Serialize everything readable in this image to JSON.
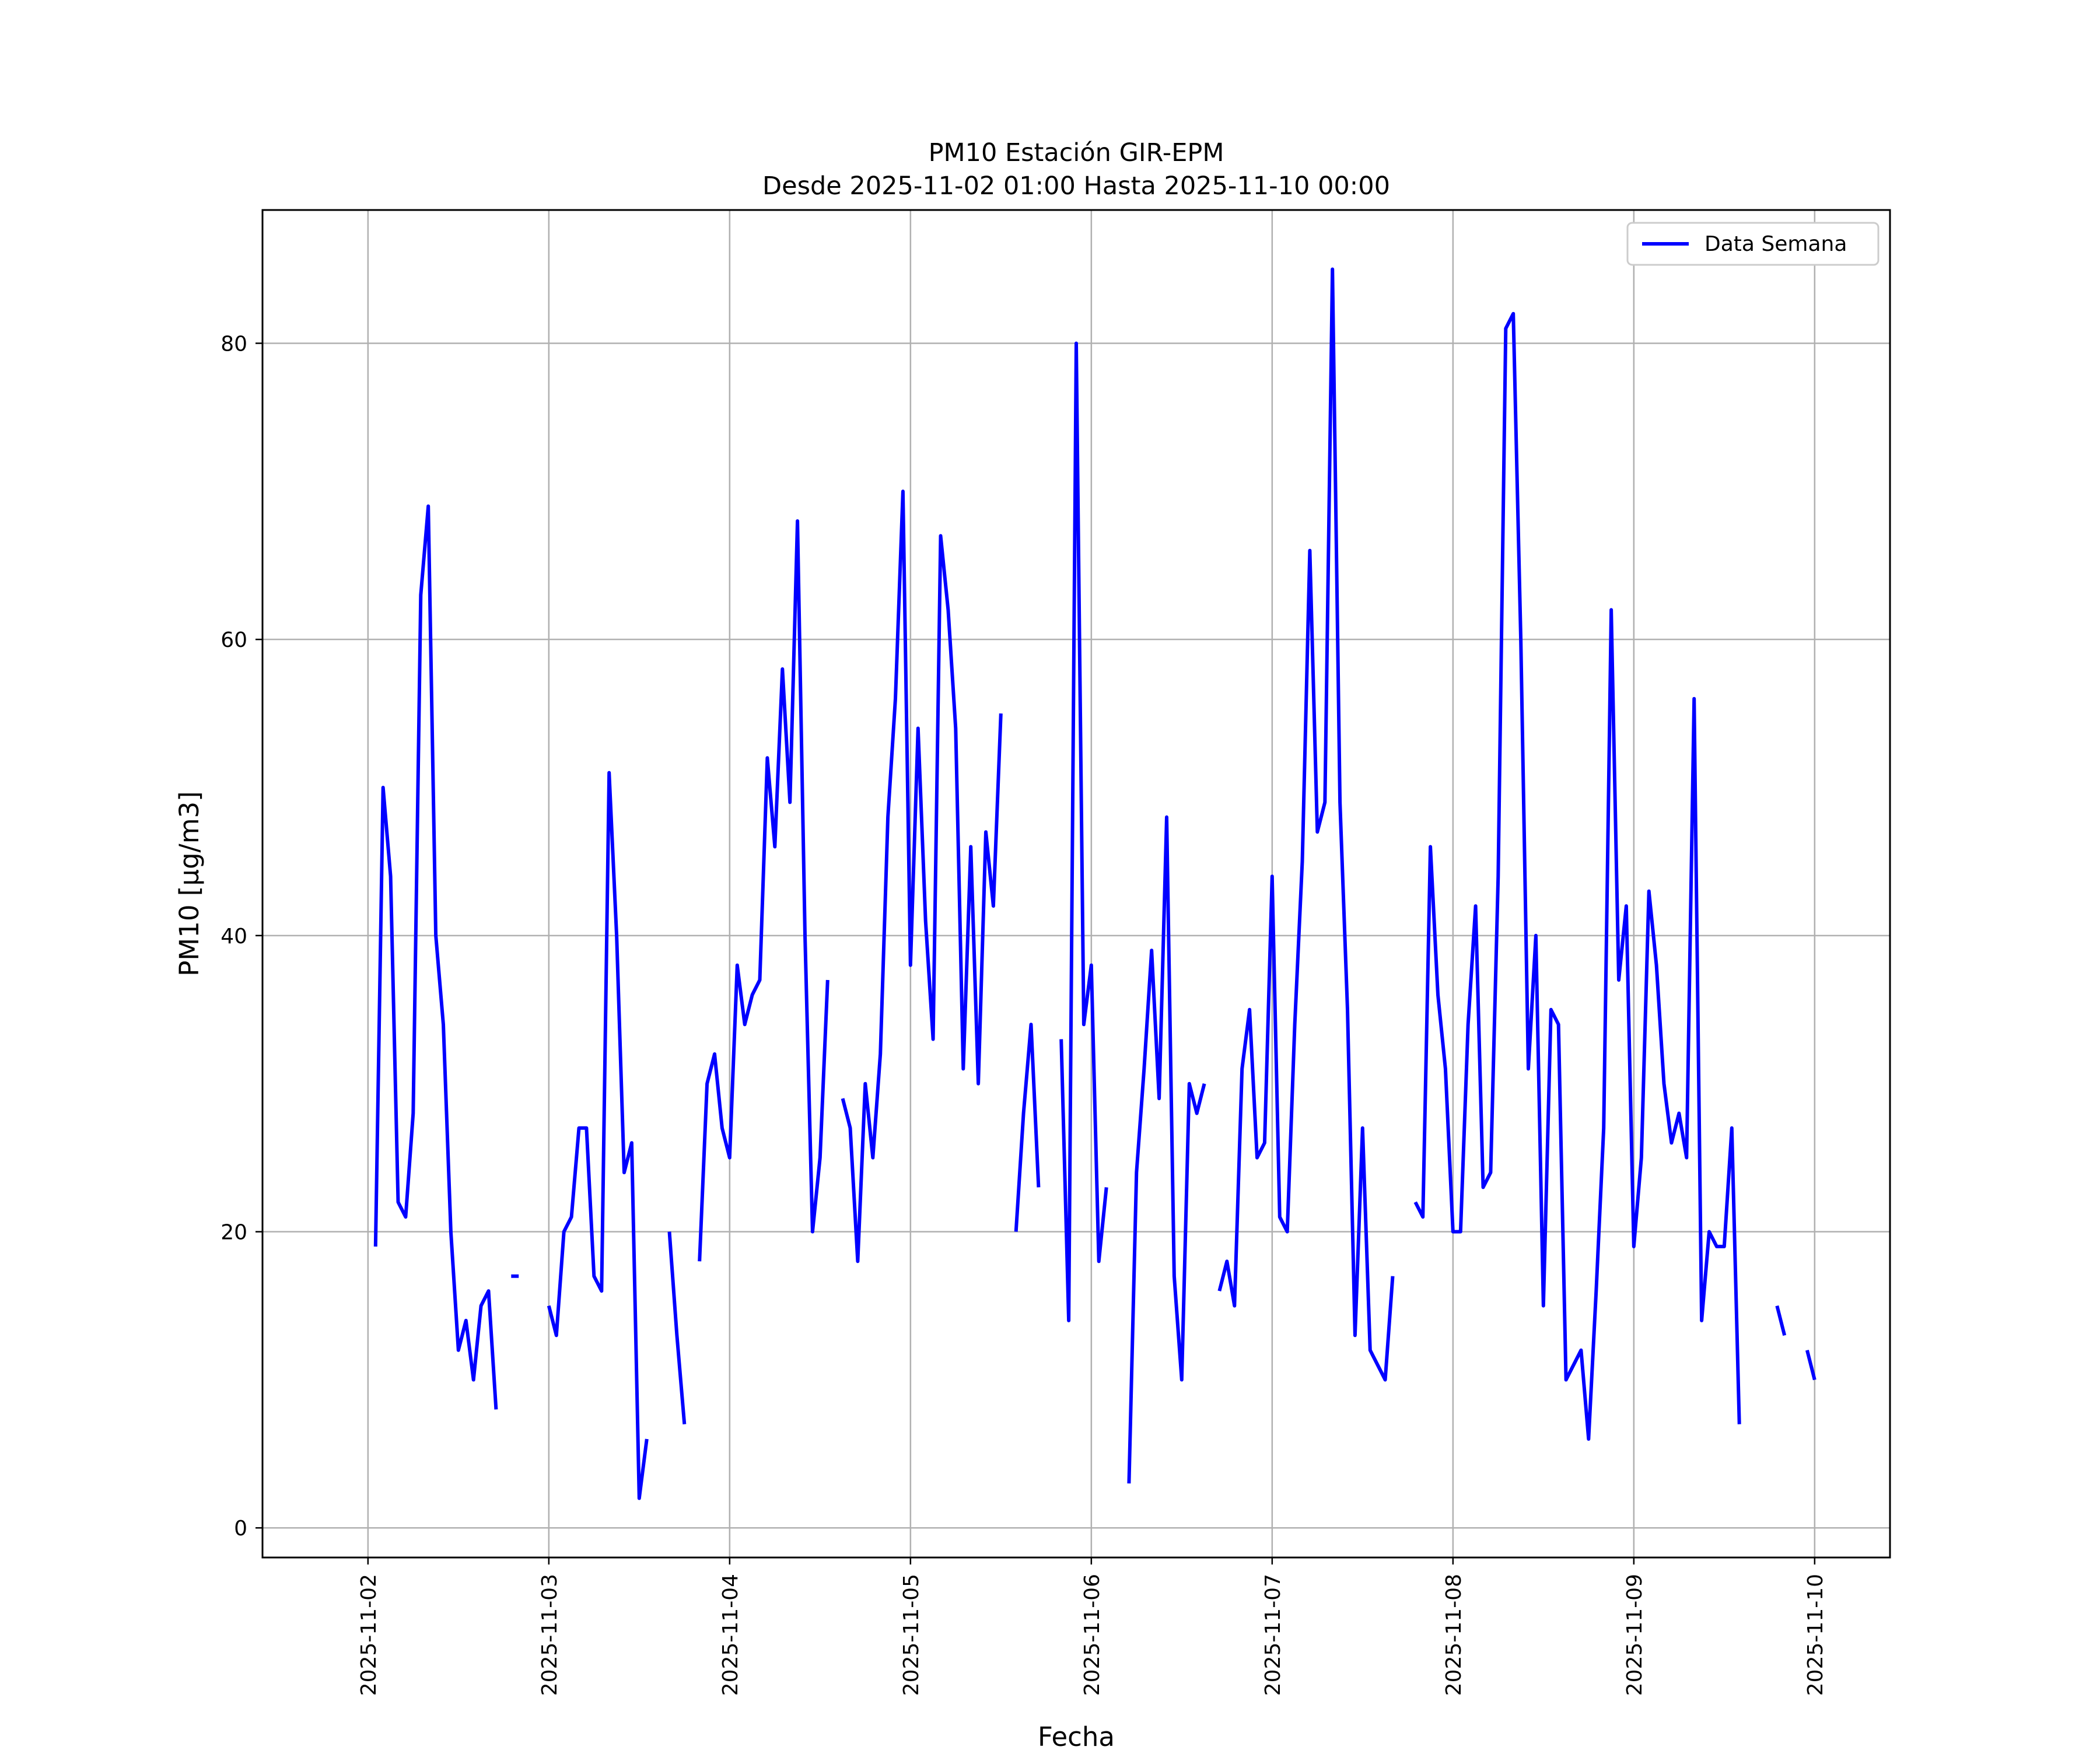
{
  "chart_data": {
    "type": "line",
    "title": "PM10 Estación GIR-EPM",
    "subtitle": "Desde 2025-11-02 01:00 Hasta 2025-11-10 00:00",
    "xlabel": "Fecha",
    "ylabel": "PM10 [μg/m3]",
    "x_ticks": [
      "2025-11-02",
      "2025-11-03",
      "2025-11-04",
      "2025-11-05",
      "2025-11-06",
      "2025-11-07",
      "2025-11-08",
      "2025-11-09",
      "2025-11-10"
    ],
    "y_ticks": [
      0,
      20,
      40,
      60,
      80
    ],
    "ylim": [
      -2,
      89
    ],
    "xlim": [
      "2025-11-01 10:00",
      "2025-11-10 10:00"
    ],
    "grid": true,
    "legend": {
      "position": "top-right"
    },
    "series": [
      {
        "name": "Data Semana",
        "color": "#0000ff",
        "points": [
          [
            "2025-11-02 01:00",
            19
          ],
          [
            "2025-11-02 02:00",
            50
          ],
          [
            "2025-11-02 03:00",
            44
          ],
          [
            "2025-11-02 04:00",
            22
          ],
          [
            "2025-11-02 05:00",
            21
          ],
          [
            "2025-11-02 06:00",
            28
          ],
          [
            "2025-11-02 07:00",
            63
          ],
          [
            "2025-11-02 08:00",
            69
          ],
          [
            "2025-11-02 09:00",
            40
          ],
          [
            "2025-11-02 10:00",
            34
          ],
          [
            "2025-11-02 11:00",
            20
          ],
          [
            "2025-11-02 12:00",
            12
          ],
          [
            "2025-11-02 13:00",
            14
          ],
          [
            "2025-11-02 14:00",
            10
          ],
          [
            "2025-11-02 15:00",
            15
          ],
          [
            "2025-11-02 16:00",
            16
          ],
          [
            "2025-11-02 17:00",
            8
          ],
          [
            "2025-11-02 18:00",
            null
          ],
          [
            "2025-11-02 19:00",
            17
          ],
          [
            "2025-11-02 20:00",
            17
          ],
          [
            "2025-11-02 21:00",
            null
          ],
          [
            "2025-11-02 22:00",
            null
          ],
          [
            "2025-11-02 23:00",
            null
          ],
          [
            "2025-11-03 00:00",
            15
          ],
          [
            "2025-11-03 01:00",
            13
          ],
          [
            "2025-11-03 02:00",
            20
          ],
          [
            "2025-11-03 03:00",
            21
          ],
          [
            "2025-11-03 04:00",
            27
          ],
          [
            "2025-11-03 05:00",
            27
          ],
          [
            "2025-11-03 06:00",
            17
          ],
          [
            "2025-11-03 07:00",
            16
          ],
          [
            "2025-11-03 08:00",
            51
          ],
          [
            "2025-11-03 09:00",
            40
          ],
          [
            "2025-11-03 10:00",
            24
          ],
          [
            "2025-11-03 11:00",
            26
          ],
          [
            "2025-11-03 12:00",
            2
          ],
          [
            "2025-11-03 13:00",
            6
          ],
          [
            "2025-11-03 14:00",
            null
          ],
          [
            "2025-11-03 15:00",
            null
          ],
          [
            "2025-11-03 16:00",
            20
          ],
          [
            "2025-11-03 17:00",
            13
          ],
          [
            "2025-11-03 18:00",
            7
          ],
          [
            "2025-11-03 19:00",
            null
          ],
          [
            "2025-11-03 20:00",
            18
          ],
          [
            "2025-11-03 21:00",
            30
          ],
          [
            "2025-11-03 22:00",
            32
          ],
          [
            "2025-11-03 23:00",
            27
          ],
          [
            "2025-11-04 00:00",
            25
          ],
          [
            "2025-11-04 01:00",
            38
          ],
          [
            "2025-11-04 02:00",
            34
          ],
          [
            "2025-11-04 03:00",
            36
          ],
          [
            "2025-11-04 04:00",
            37
          ],
          [
            "2025-11-04 05:00",
            52
          ],
          [
            "2025-11-04 06:00",
            46
          ],
          [
            "2025-11-04 07:00",
            58
          ],
          [
            "2025-11-04 08:00",
            49
          ],
          [
            "2025-11-04 09:00",
            68
          ],
          [
            "2025-11-04 10:00",
            40
          ],
          [
            "2025-11-04 11:00",
            20
          ],
          [
            "2025-11-04 12:00",
            25
          ],
          [
            "2025-11-04 13:00",
            37
          ],
          [
            "2025-11-04 14:00",
            null
          ],
          [
            "2025-11-04 15:00",
            29
          ],
          [
            "2025-11-04 16:00",
            27
          ],
          [
            "2025-11-04 17:00",
            18
          ],
          [
            "2025-11-04 18:00",
            30
          ],
          [
            "2025-11-04 19:00",
            25
          ],
          [
            "2025-11-04 20:00",
            32
          ],
          [
            "2025-11-04 21:00",
            48
          ],
          [
            "2025-11-04 22:00",
            56
          ],
          [
            "2025-11-04 23:00",
            70
          ],
          [
            "2025-11-05 00:00",
            38
          ],
          [
            "2025-11-05 01:00",
            54
          ],
          [
            "2025-11-05 02:00",
            41
          ],
          [
            "2025-11-05 03:00",
            33
          ],
          [
            "2025-11-05 04:00",
            67
          ],
          [
            "2025-11-05 05:00",
            62
          ],
          [
            "2025-11-05 06:00",
            54
          ],
          [
            "2025-11-05 07:00",
            31
          ],
          [
            "2025-11-05 08:00",
            46
          ],
          [
            "2025-11-05 09:00",
            30
          ],
          [
            "2025-11-05 10:00",
            47
          ],
          [
            "2025-11-05 11:00",
            42
          ],
          [
            "2025-11-05 12:00",
            55
          ],
          [
            "2025-11-05 13:00",
            null
          ],
          [
            "2025-11-05 14:00",
            20
          ],
          [
            "2025-11-05 15:00",
            28
          ],
          [
            "2025-11-05 16:00",
            34
          ],
          [
            "2025-11-05 17:00",
            23
          ],
          [
            "2025-11-05 18:00",
            null
          ],
          [
            "2025-11-05 20:00",
            33
          ],
          [
            "2025-11-05 21:00",
            14
          ],
          [
            "2025-11-05 22:00",
            80
          ],
          [
            "2025-11-05 23:00",
            34
          ],
          [
            "2025-11-06 00:00",
            38
          ],
          [
            "2025-11-06 01:00",
            18
          ],
          [
            "2025-11-06 02:00",
            23
          ],
          [
            "2025-11-06 03:00",
            null
          ],
          [
            "2025-11-06 05:00",
            3
          ],
          [
            "2025-11-06 06:00",
            24
          ],
          [
            "2025-11-06 07:00",
            31
          ],
          [
            "2025-11-06 08:00",
            39
          ],
          [
            "2025-11-06 09:00",
            29
          ],
          [
            "2025-11-06 10:00",
            48
          ],
          [
            "2025-11-06 11:00",
            17
          ],
          [
            "2025-11-06 12:00",
            10
          ],
          [
            "2025-11-06 13:00",
            30
          ],
          [
            "2025-11-06 14:00",
            28
          ],
          [
            "2025-11-06 15:00",
            30
          ],
          [
            "2025-11-06 16:00",
            null
          ],
          [
            "2025-11-06 17:00",
            16
          ],
          [
            "2025-11-06 18:00",
            18
          ],
          [
            "2025-11-06 19:00",
            15
          ],
          [
            "2025-11-06 20:00",
            31
          ],
          [
            "2025-11-06 21:00",
            35
          ],
          [
            "2025-11-06 22:00",
            25
          ],
          [
            "2025-11-06 23:00",
            26
          ],
          [
            "2025-11-07 00:00",
            44
          ],
          [
            "2025-11-07 01:00",
            21
          ],
          [
            "2025-11-07 02:00",
            20
          ],
          [
            "2025-11-07 03:00",
            34
          ],
          [
            "2025-11-07 04:00",
            45
          ],
          [
            "2025-11-07 05:00",
            66
          ],
          [
            "2025-11-07 06:00",
            47
          ],
          [
            "2025-11-07 07:00",
            49
          ],
          [
            "2025-11-07 08:00",
            85
          ],
          [
            "2025-11-07 09:00",
            49
          ],
          [
            "2025-11-07 10:00",
            35
          ],
          [
            "2025-11-07 11:00",
            13
          ],
          [
            "2025-11-07 12:00",
            27
          ],
          [
            "2025-11-07 13:00",
            12
          ],
          [
            "2025-11-07 14:00",
            11
          ],
          [
            "2025-11-07 15:00",
            10
          ],
          [
            "2025-11-07 16:00",
            17
          ],
          [
            "2025-11-07 17:00",
            null
          ],
          [
            "2025-11-07 19:00",
            22
          ],
          [
            "2025-11-07 20:00",
            21
          ],
          [
            "2025-11-07 21:00",
            46
          ],
          [
            "2025-11-07 22:00",
            36
          ],
          [
            "2025-11-07 23:00",
            31
          ],
          [
            "2025-11-08 00:00",
            20
          ],
          [
            "2025-11-08 01:00",
            20
          ],
          [
            "2025-11-08 02:00",
            34
          ],
          [
            "2025-11-08 03:00",
            42
          ],
          [
            "2025-11-08 04:00",
            23
          ],
          [
            "2025-11-08 05:00",
            24
          ],
          [
            "2025-11-08 06:00",
            44
          ],
          [
            "2025-11-08 07:00",
            81
          ],
          [
            "2025-11-08 08:00",
            82
          ],
          [
            "2025-11-08 09:00",
            60
          ],
          [
            "2025-11-08 10:00",
            31
          ],
          [
            "2025-11-08 11:00",
            40
          ],
          [
            "2025-11-08 12:00",
            15
          ],
          [
            "2025-11-08 13:00",
            35
          ],
          [
            "2025-11-08 14:00",
            34
          ],
          [
            "2025-11-08 15:00",
            10
          ],
          [
            "2025-11-08 16:00",
            11
          ],
          [
            "2025-11-08 17:00",
            12
          ],
          [
            "2025-11-08 18:00",
            6
          ],
          [
            "2025-11-08 19:00",
            16
          ],
          [
            "2025-11-08 20:00",
            27
          ],
          [
            "2025-11-08 21:00",
            62
          ],
          [
            "2025-11-08 22:00",
            37
          ],
          [
            "2025-11-08 23:00",
            42
          ],
          [
            "2025-11-09 00:00",
            19
          ],
          [
            "2025-11-09 01:00",
            25
          ],
          [
            "2025-11-09 02:00",
            43
          ],
          [
            "2025-11-09 03:00",
            38
          ],
          [
            "2025-11-09 04:00",
            30
          ],
          [
            "2025-11-09 05:00",
            26
          ],
          [
            "2025-11-09 06:00",
            28
          ],
          [
            "2025-11-09 07:00",
            25
          ],
          [
            "2025-11-09 08:00",
            56
          ],
          [
            "2025-11-09 09:00",
            14
          ],
          [
            "2025-11-09 10:00",
            20
          ],
          [
            "2025-11-09 11:00",
            19
          ],
          [
            "2025-11-09 12:00",
            19
          ],
          [
            "2025-11-09 13:00",
            27
          ],
          [
            "2025-11-09 14:00",
            7
          ],
          [
            "2025-11-09 15:00",
            null
          ],
          [
            "2025-11-09 19:00",
            15
          ],
          [
            "2025-11-09 20:00",
            13
          ],
          [
            "2025-11-09 21:00",
            null
          ],
          [
            "2025-11-09 23:00",
            12
          ],
          [
            "2025-11-10 00:00",
            10
          ]
        ]
      }
    ]
  }
}
